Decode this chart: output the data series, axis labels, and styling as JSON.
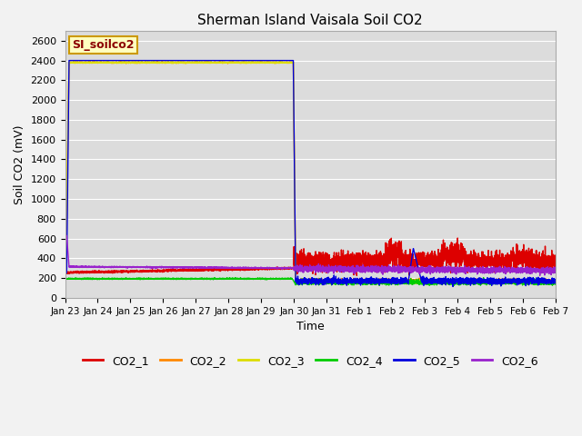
{
  "title": "Sherman Island Vaisala Soil CO2",
  "xlabel": "Time",
  "ylabel": "Soil CO2 (mV)",
  "ylim": [
    0,
    2700
  ],
  "yticks": [
    0,
    200,
    400,
    600,
    800,
    1000,
    1200,
    1400,
    1600,
    1800,
    2000,
    2200,
    2400,
    2600
  ],
  "date_labels": [
    "Jan 23",
    "Jan 24",
    "Jan 25",
    "Jan 26",
    "Jan 27",
    "Jan 28",
    "Jan 29",
    "Jan 30",
    "Jan 31",
    "Feb 1",
    "Feb 2",
    "Feb 3",
    "Feb 4",
    "Feb 5",
    "Feb 6",
    "Feb 7"
  ],
  "watermark_text": "SI_soilco2",
  "watermark_bg": "#ffffc0",
  "watermark_border": "#cc9900",
  "colors": {
    "CO2_1": "#dd0000",
    "CO2_2": "#ff8800",
    "CO2_3": "#dddd00",
    "CO2_4": "#00cc00",
    "CO2_5": "#0000dd",
    "CO2_6": "#9922cc"
  },
  "bg_color": "#dcdcdc",
  "grid_color": "#ffffff",
  "fig_bg": "#f2f2f2"
}
